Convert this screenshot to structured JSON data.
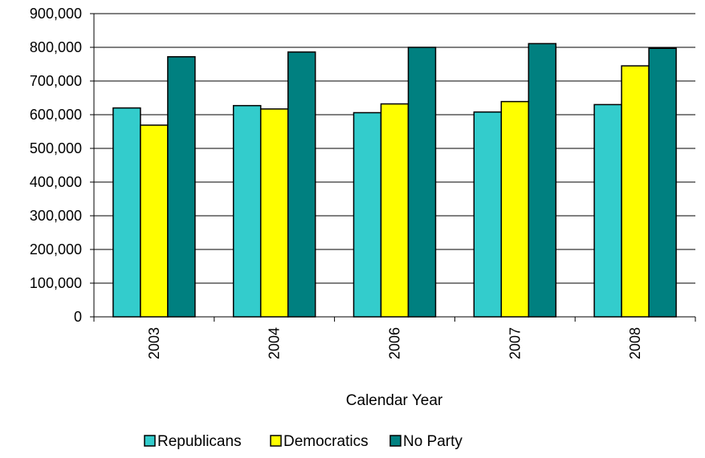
{
  "chart_data": {
    "type": "bar",
    "title": "",
    "xlabel": "Calendar Year",
    "ylabel": "",
    "ylim": [
      0,
      900000
    ],
    "yticks": [
      0,
      100000,
      200000,
      300000,
      400000,
      500000,
      600000,
      700000,
      800000,
      900000
    ],
    "ytick_labels": [
      "0",
      "100,000",
      "200,000",
      "300,000",
      "400,000",
      "500,000",
      "600,000",
      "700,000",
      "800,000",
      "900,000"
    ],
    "categories": [
      "2003",
      "2004",
      "2006",
      "2007",
      "2008"
    ],
    "grid": "horizontal",
    "legend_position": "bottom",
    "series": [
      {
        "name": "Republicans",
        "color": "#33CCCC",
        "values": [
          620000,
          627000,
          606000,
          608000,
          630000
        ]
      },
      {
        "name": "Democratics",
        "color": "#FFFF00",
        "values": [
          569000,
          617000,
          632000,
          639000,
          745000
        ]
      },
      {
        "name": "No Party",
        "color": "#008080",
        "values": [
          772000,
          786000,
          800000,
          811000,
          797000
        ]
      }
    ]
  }
}
